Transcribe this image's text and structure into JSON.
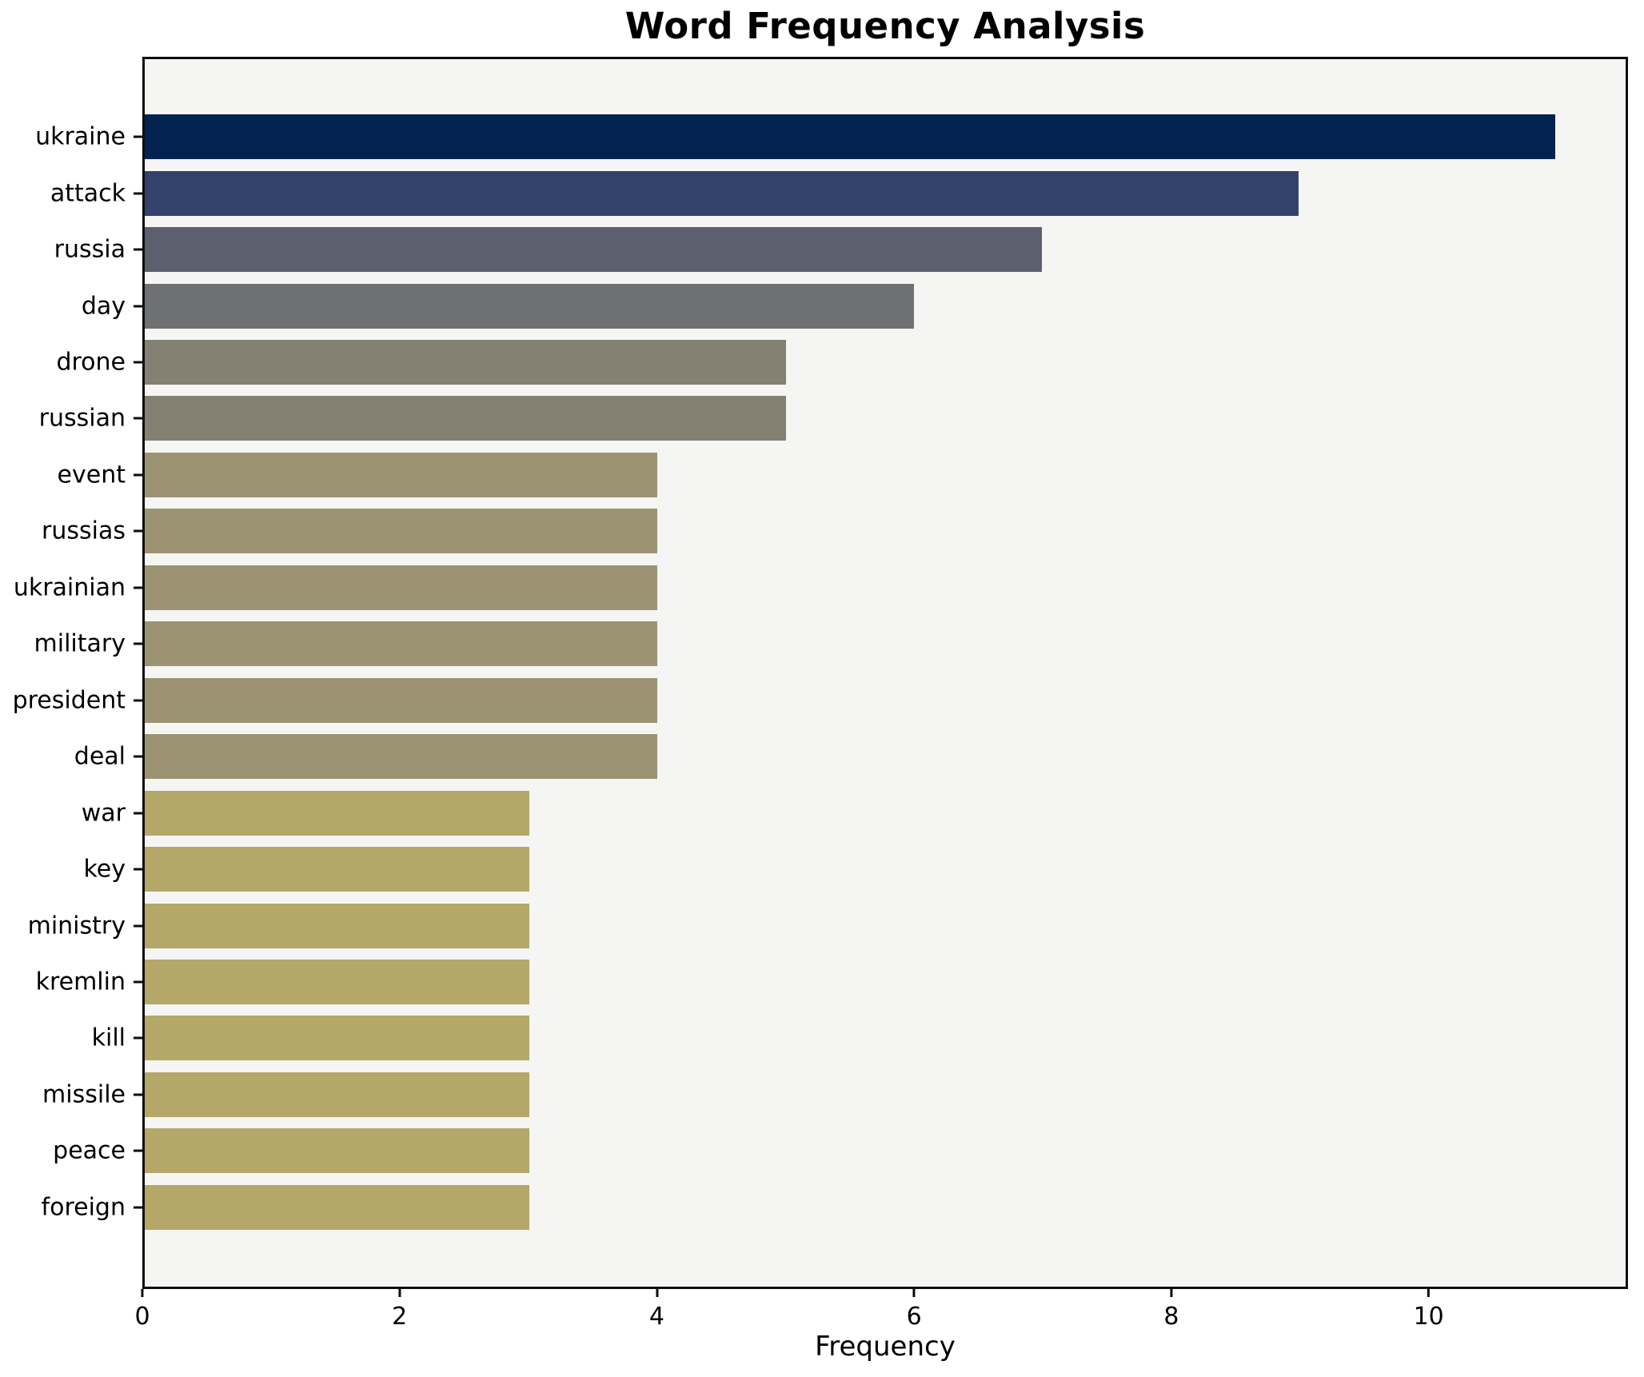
{
  "chart_data": {
    "type": "bar",
    "orientation": "horizontal",
    "title": "Word Frequency Analysis",
    "xlabel": "Frequency",
    "ylabel": "",
    "grid": false,
    "legend": false,
    "plot_background": "#f5f5f3",
    "spine_color": "#0d0d0d",
    "xlim": [
      0,
      11.55
    ],
    "x_ticks": [
      0,
      2,
      4,
      6,
      8,
      10
    ],
    "categories": [
      "ukraine",
      "attack",
      "russia",
      "day",
      "drone",
      "russian",
      "event",
      "russias",
      "ukrainian",
      "military",
      "president",
      "deal",
      "war",
      "key",
      "ministry",
      "kremlin",
      "kill",
      "missile",
      "peace",
      "foreign"
    ],
    "values": [
      11,
      9,
      7,
      6,
      5,
      5,
      4,
      4,
      4,
      4,
      4,
      4,
      3,
      3,
      3,
      3,
      3,
      3,
      3,
      3
    ],
    "bar_colors": [
      "#02234f",
      "#32426b",
      "#5b5f6e",
      "#6f7071",
      "#848173",
      "#848173",
      "#9c9372",
      "#9c9372",
      "#9c9372",
      "#9c9372",
      "#9c9372",
      "#9c9372",
      "#b4a768",
      "#b4a768",
      "#b4a768",
      "#b4a768",
      "#b4a768",
      "#b4a768",
      "#b4a768",
      "#b4a768"
    ]
  }
}
